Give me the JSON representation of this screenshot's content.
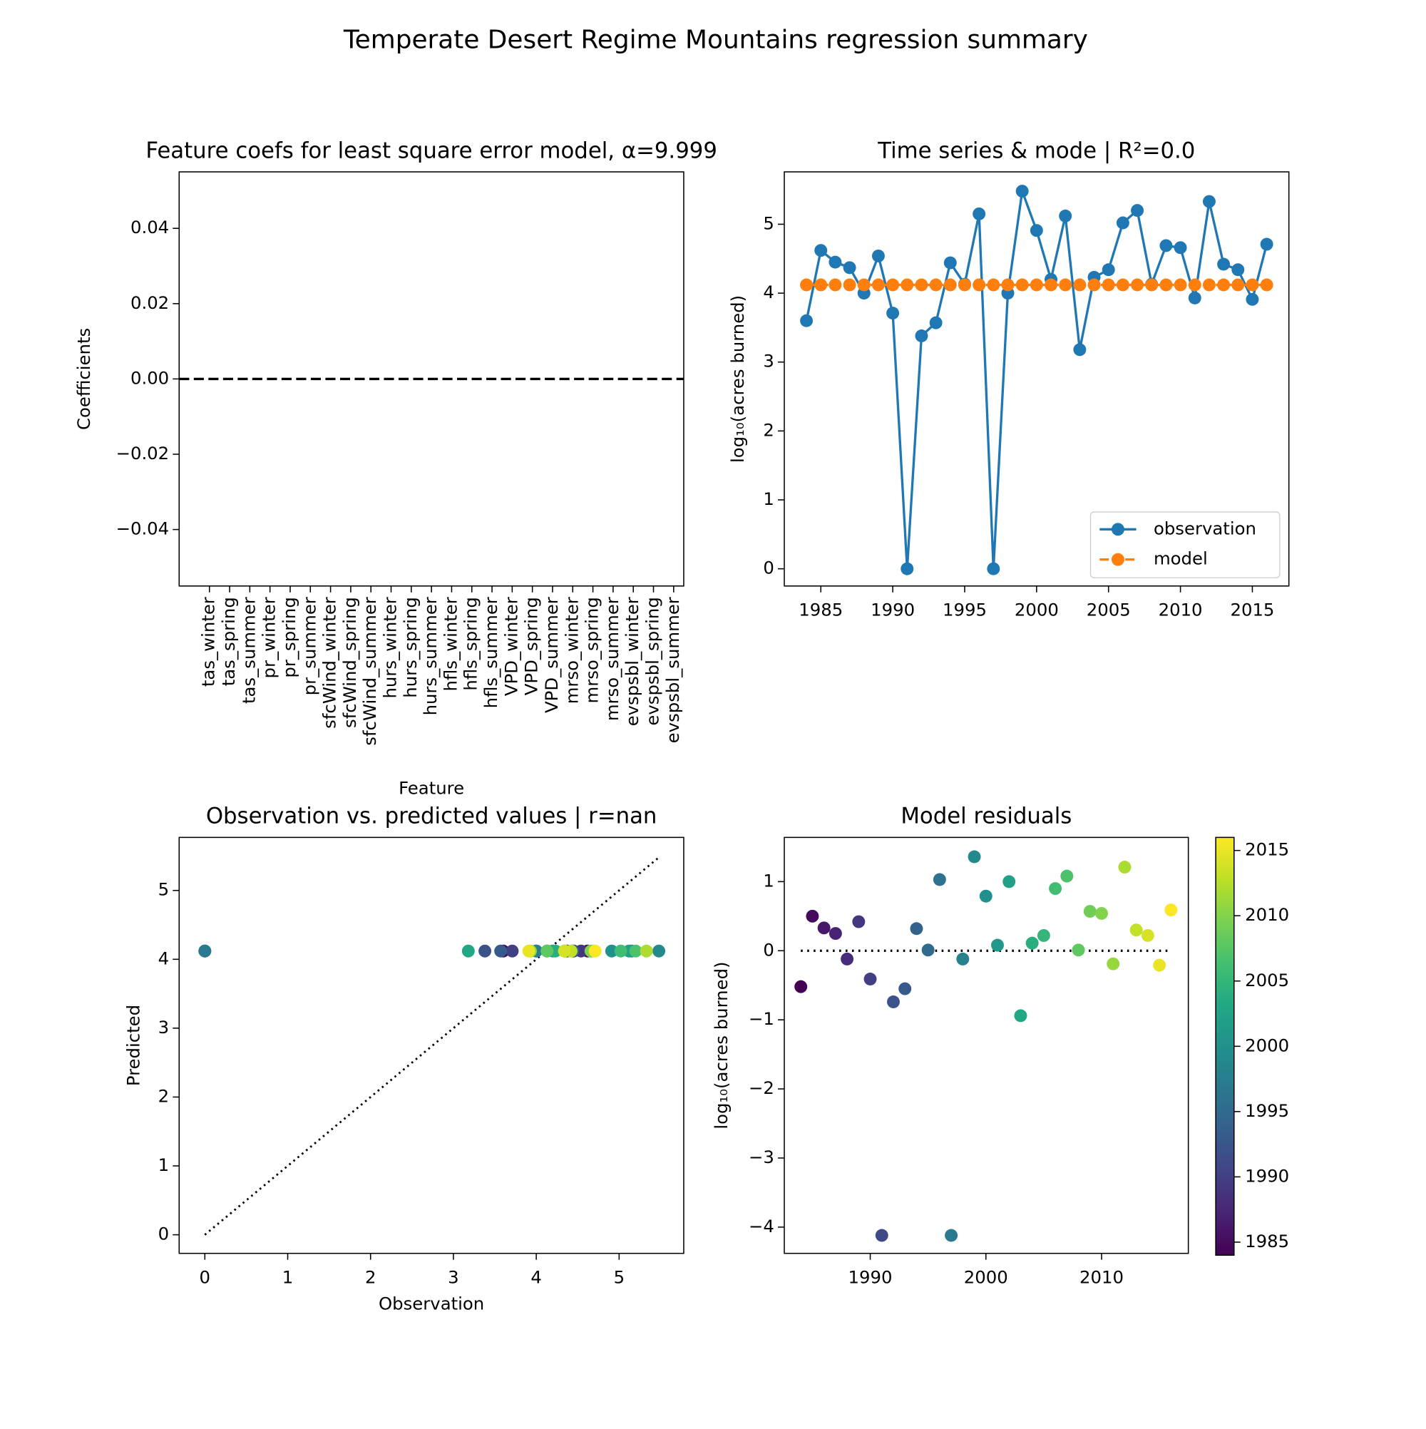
{
  "title": "Temperate Desert Regime Mountains regression summary",
  "chart_data": [
    {
      "type": "bar",
      "title": "Feature coefs for least square error model, α=9.999",
      "xlabel": "Feature",
      "ylabel": "Coefficients",
      "categories": [
        "tas_winter",
        "tas_spring",
        "tas_summer",
        "pr_winter",
        "pr_spring",
        "pr_summer",
        "sfcWind_winter",
        "sfcWind_spring",
        "sfcWind_summer",
        "hurs_winter",
        "hurs_spring",
        "hurs_summer",
        "hfls_winter",
        "hfls_spring",
        "hfls_summer",
        "VPD_winter",
        "VPD_spring",
        "VPD_summer",
        "mrso_winter",
        "mrso_spring",
        "mrso_summer",
        "evspsbl_winter",
        "evspsbl_spring",
        "evspsbl_summer"
      ],
      "values": [
        0,
        0,
        0,
        0,
        0,
        0,
        0,
        0,
        0,
        0,
        0,
        0,
        0,
        0,
        0,
        0,
        0,
        0,
        0,
        0,
        0,
        0,
        0,
        0
      ],
      "color": "#1f77b4",
      "reference_line": 0,
      "ylim": [
        -0.055,
        0.055
      ],
      "yticks": [
        {
          "value": -0.04,
          "label": "−0.04"
        },
        {
          "value": -0.02,
          "label": "−0.02"
        },
        {
          "value": 0,
          "label": "0.00"
        },
        {
          "value": 0.02,
          "label": "0.02"
        },
        {
          "value": 0.04,
          "label": "0.04"
        }
      ]
    },
    {
      "type": "line",
      "title": "Time series & mode | R²=0.0",
      "ylabel": "log₁₀(acres burned)",
      "x": [
        1984,
        1985,
        1986,
        1987,
        1988,
        1989,
        1990,
        1991,
        1992,
        1993,
        1994,
        1995,
        1996,
        1997,
        1998,
        1999,
        2000,
        2001,
        2002,
        2003,
        2004,
        2005,
        2006,
        2007,
        2008,
        2009,
        2010,
        2011,
        2012,
        2013,
        2014,
        2015,
        2016
      ],
      "series": [
        {
          "name": "observation",
          "color": "#1f77b4",
          "dash": false,
          "values": [
            3.6,
            4.62,
            4.45,
            4.37,
            4.0,
            4.54,
            3.71,
            0,
            3.38,
            3.57,
            4.44,
            4.13,
            5.15,
            0,
            4.0,
            5.48,
            4.91,
            4.2,
            5.12,
            3.18,
            4.23,
            4.34,
            5.02,
            5.2,
            4.13,
            4.69,
            4.66,
            3.93,
            5.33,
            4.42,
            4.34,
            3.91,
            4.71
          ]
        },
        {
          "name": "model",
          "color": "#ff7f0e",
          "dash": true,
          "values": [
            4.12,
            4.12,
            4.12,
            4.12,
            4.12,
            4.12,
            4.12,
            4.12,
            4.12,
            4.12,
            4.12,
            4.12,
            4.12,
            4.12,
            4.12,
            4.12,
            4.12,
            4.12,
            4.12,
            4.12,
            4.12,
            4.12,
            4.12,
            4.12,
            4.12,
            4.12,
            4.12,
            4.12,
            4.12,
            4.12,
            4.12,
            4.12,
            4.12
          ]
        }
      ],
      "xlim": [
        1982.46,
        2017.54
      ],
      "xticks": [
        1985,
        1990,
        1995,
        2000,
        2005,
        2010,
        2015
      ],
      "ylim": [
        -0.25,
        5.76
      ],
      "yticks": [
        0,
        1,
        2,
        3,
        4,
        5
      ],
      "legend": "lower right"
    },
    {
      "type": "scatter",
      "title": "Observation vs. predicted values | r=nan",
      "xlabel": "Observation",
      "ylabel": "Predicted",
      "x": [
        3.6,
        4.62,
        4.45,
        4.37,
        4.0,
        4.54,
        3.71,
        0,
        3.38,
        3.57,
        4.44,
        4.13,
        5.15,
        0,
        4.0,
        5.48,
        4.91,
        4.2,
        5.12,
        3.18,
        4.23,
        4.34,
        5.02,
        5.2,
        4.13,
        4.69,
        4.66,
        3.93,
        5.33,
        4.42,
        4.34,
        3.91,
        4.71
      ],
      "values": [
        4.12,
        4.12,
        4.12,
        4.12,
        4.12,
        4.12,
        4.12,
        4.12,
        4.12,
        4.12,
        4.12,
        4.12,
        4.12,
        4.12,
        4.12,
        4.12,
        4.12,
        4.12,
        4.12,
        4.12,
        4.12,
        4.12,
        4.12,
        4.12,
        4.12,
        4.12,
        4.12,
        4.12,
        4.12,
        4.12,
        4.12,
        4.12,
        4.12
      ],
      "color_values": [
        1984,
        1985,
        1986,
        1987,
        1988,
        1989,
        1990,
        1991,
        1992,
        1993,
        1994,
        1995,
        1996,
        1997,
        1998,
        1999,
        2000,
        2001,
        2002,
        2003,
        2004,
        2005,
        2006,
        2007,
        2008,
        2009,
        2010,
        2011,
        2012,
        2013,
        2014,
        2015,
        2016
      ],
      "colormap": "viridis",
      "clim": [
        1984,
        2016
      ],
      "identity_line": [
        0,
        5.48
      ],
      "xlim": [
        -0.31,
        5.78
      ],
      "xticks": [
        0,
        1,
        2,
        3,
        4,
        5
      ],
      "ylim": [
        -0.27,
        5.77
      ],
      "yticks": [
        0,
        1,
        2,
        3,
        4,
        5
      ]
    },
    {
      "type": "scatter",
      "title": "Model residuals",
      "ylabel": "log₁₀(acres burned)",
      "x": [
        1984,
        1985,
        1986,
        1987,
        1988,
        1989,
        1990,
        1991,
        1992,
        1993,
        1994,
        1995,
        1996,
        1997,
        1998,
        1999,
        2000,
        2001,
        2002,
        2003,
        2004,
        2005,
        2006,
        2007,
        2008,
        2009,
        2010,
        2011,
        2012,
        2013,
        2014,
        2015,
        2016
      ],
      "values": [
        -0.52,
        0.5,
        0.33,
        0.25,
        -0.12,
        0.42,
        -0.41,
        -4.12,
        -0.74,
        -0.55,
        0.32,
        0.01,
        1.03,
        -4.12,
        -0.12,
        1.36,
        0.79,
        0.08,
        1.0,
        -0.94,
        0.11,
        0.22,
        0.9,
        1.08,
        0.01,
        0.57,
        0.54,
        -0.19,
        1.21,
        0.3,
        0.22,
        -0.21,
        0.59
      ],
      "color_values": [
        1984,
        1985,
        1986,
        1987,
        1988,
        1989,
        1990,
        1991,
        1992,
        1993,
        1994,
        1995,
        1996,
        1997,
        1998,
        1999,
        2000,
        2001,
        2002,
        2003,
        2004,
        2005,
        2006,
        2007,
        2008,
        2009,
        2010,
        2011,
        2012,
        2013,
        2014,
        2015,
        2016
      ],
      "colormap": "viridis",
      "clim": [
        1984,
        2016
      ],
      "colorbar_ticks": [
        1985,
        1990,
        1995,
        2000,
        2005,
        2010,
        2015
      ],
      "reference_line": 0,
      "xlim": [
        1982.57,
        2017.5
      ],
      "xticks": [
        1990,
        2000,
        2010
      ],
      "ylim": [
        -4.38,
        1.64
      ],
      "yticks": [
        {
          "value": -4,
          "label": "−4"
        },
        {
          "value": -3,
          "label": "−3"
        },
        {
          "value": -2,
          "label": "−2"
        },
        {
          "value": -1,
          "label": "−1"
        },
        0,
        1
      ]
    }
  ]
}
